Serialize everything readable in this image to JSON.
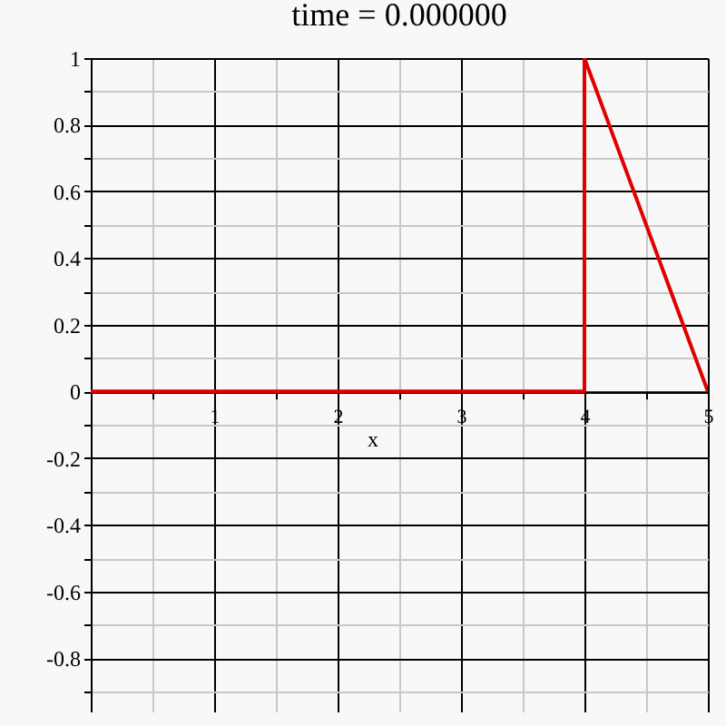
{
  "chart_data": {
    "type": "line",
    "title": "time = 0.000000",
    "xlabel": "x",
    "series": [
      {
        "color": "#e00000",
        "x": [
          0,
          4,
          4,
          5
        ],
        "values": [
          0,
          0,
          1,
          0
        ]
      }
    ],
    "xlim": [
      0,
      5
    ],
    "ylim": [
      -0.96,
      1
    ],
    "xticks": [
      {
        "value": 0.5,
        "label": null
      },
      1,
      {
        "value": 1.5,
        "label": null
      },
      2,
      {
        "value": 2.5,
        "label": null
      },
      3,
      {
        "value": 3.5,
        "label": null
      },
      4,
      {
        "value": 4.5,
        "label": null
      },
      5
    ],
    "yticks": [
      {
        "value": -0.9,
        "label": null
      },
      -0.8,
      {
        "value": -0.7,
        "label": null
      },
      -0.6,
      {
        "value": -0.5,
        "label": null
      },
      -0.4,
      {
        "value": -0.3,
        "label": null
      },
      -0.2,
      {
        "value": -0.1,
        "label": null
      },
      0,
      {
        "value": 0.1,
        "label": null
      },
      0.2,
      {
        "value": 0.3,
        "label": null
      },
      0.4,
      {
        "value": 0.5,
        "label": null
      },
      0.6,
      {
        "value": 0.7,
        "label": null
      },
      0.8,
      {
        "value": 0.9,
        "label": null
      },
      1
    ],
    "grid": true,
    "legend": false,
    "marker": "none",
    "line_style": "solid"
  }
}
